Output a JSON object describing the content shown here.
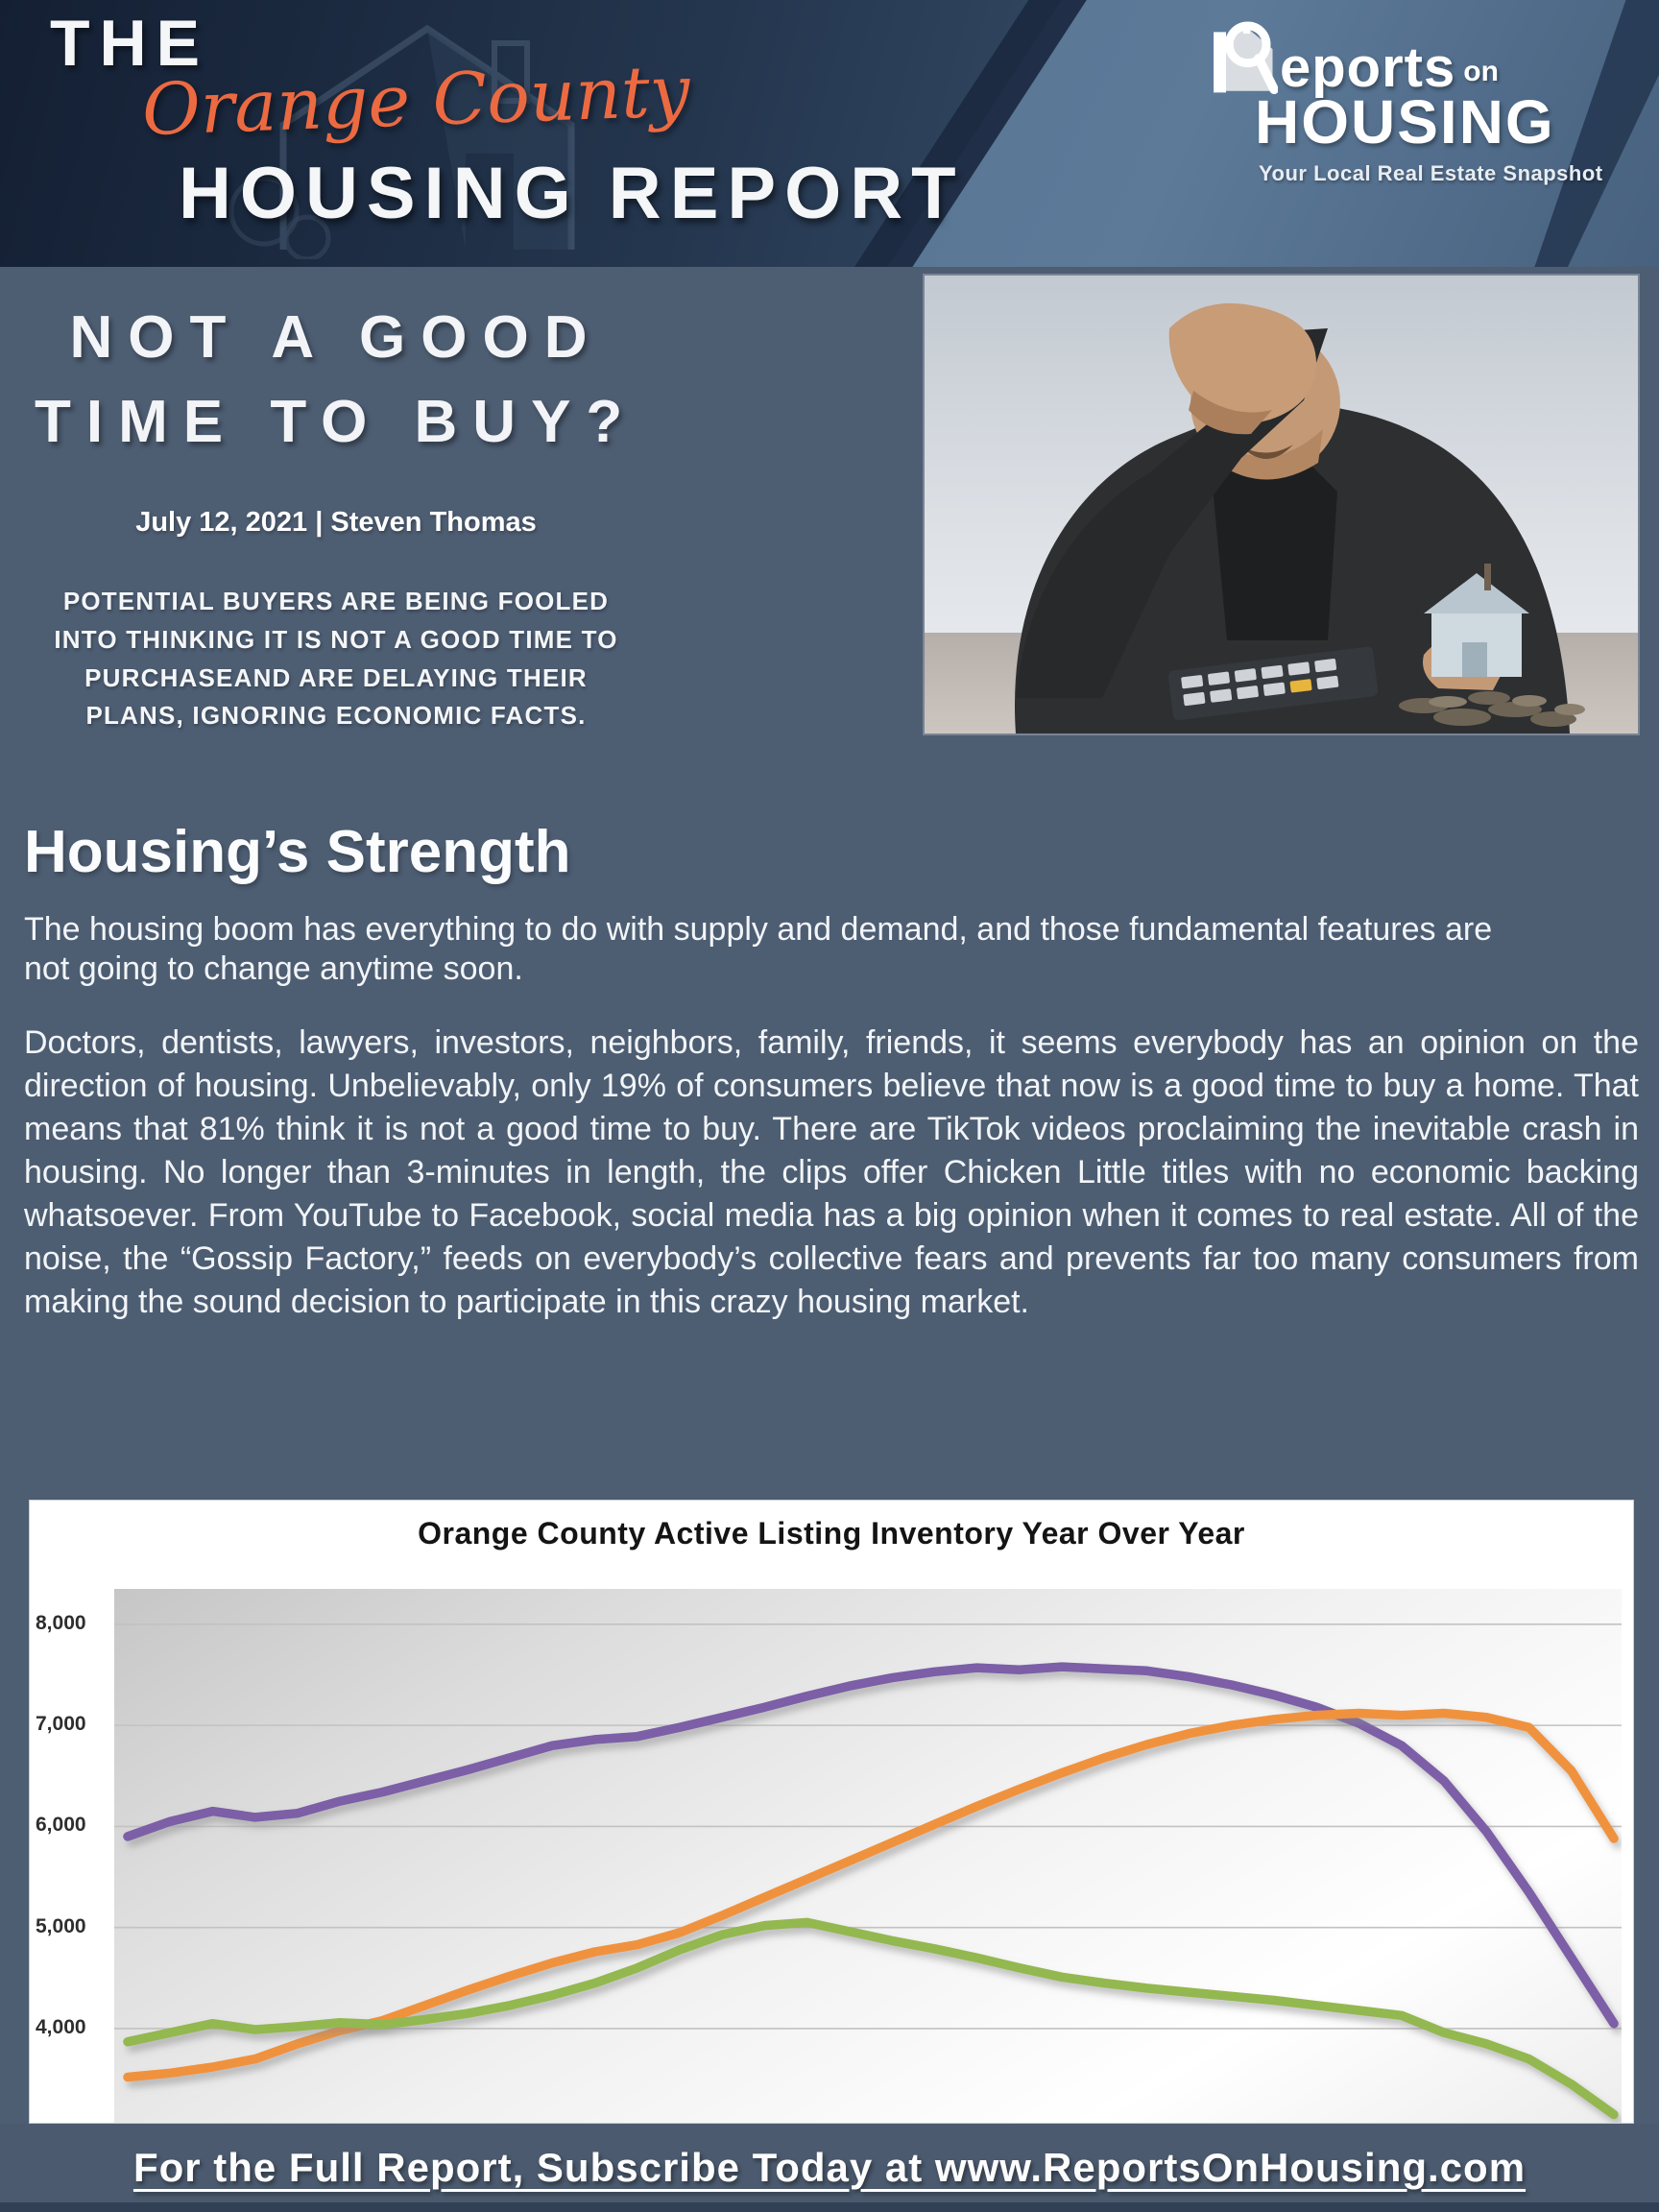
{
  "colors": {
    "page_bg": "#4d5d72",
    "banner_dark": "#1c2b41",
    "banner_light": "#587493",
    "accent_orange": "#ec6a41",
    "chart_purple": "#7b5ea7",
    "chart_orange": "#f0923e",
    "chart_green": "#93b84f"
  },
  "header": {
    "brand_the": "THE",
    "brand_script": "Orange County",
    "brand_main": "HOUSING REPORT",
    "logo": {
      "reports": "eports",
      "on": "on",
      "housing": "HOUSING",
      "tagline": "Your Local Real Estate Snapshot"
    }
  },
  "hero": {
    "headline_lines": [
      "NOT A GOOD",
      "TIME TO BUY?"
    ],
    "byline": "July 12, 2021 | Steven Thomas",
    "standfirst": "POTENTIAL BUYERS ARE BEING FOOLED INTO THINKING IT IS NOT A GOOD TIME TO PURCHASEAND ARE DELAYING THEIR PLANS, IGNORING ECONOMIC FACTS."
  },
  "article": {
    "heading": "Housing’s Strength",
    "intro": "The housing boom has everything to do with supply and demand, and those fundamental features are not going to change anytime soon.",
    "body": "Doctors, dentists, lawyers, investors, neighbors, family, friends, it seems everybody has an opinion on the direction of housing. Unbelievably, only 19% of consumers believe that now is a good time to buy a home. That means that 81% think it is not a good time to buy. There are TikTok videos proclaiming the inevitable crash in housing. No longer than 3-minutes in length, the clips offer Chicken Little titles with no economic backing whatsoever. From YouTube to Facebook, social media has a big opinion when it comes to real estate. All of the noise, the “Gossip Factory,” feeds on everybody’s collective fears and prevents far too many consumers from making the sound decision to participate in this crazy housing market."
  },
  "chart_data": {
    "type": "line",
    "title": "Orange County Active Listing Inventory Year Over Year",
    "xlabel": "",
    "ylabel": "",
    "ylim": [
      3050,
      8350
    ],
    "yticks": [
      4000,
      5000,
      6000,
      7000,
      8000
    ],
    "grid": true,
    "legend_position": "none-visible (cropped out of view)",
    "x_axis_note": "weekly points; x-axis tick labels cropped out of the visible area",
    "series": [
      {
        "name": "purple-line",
        "color": "#7b5ea7",
        "values": [
          5900,
          6050,
          6150,
          6090,
          6130,
          6250,
          6340,
          6450,
          6560,
          6680,
          6800,
          6860,
          6890,
          6980,
          7080,
          7180,
          7290,
          7390,
          7470,
          7530,
          7570,
          7550,
          7580,
          7560,
          7540,
          7480,
          7400,
          7300,
          7180,
          7020,
          6800,
          6450,
          5950,
          5350,
          4700,
          4050
        ]
      },
      {
        "name": "orange-line",
        "color": "#f0923e",
        "values": [
          3520,
          3560,
          3620,
          3700,
          3850,
          3980,
          4080,
          4230,
          4380,
          4520,
          4650,
          4760,
          4830,
          4950,
          5120,
          5300,
          5480,
          5660,
          5840,
          6020,
          6200,
          6370,
          6530,
          6680,
          6810,
          6920,
          7000,
          7060,
          7100,
          7120,
          7100,
          7120,
          7080,
          6980,
          6550,
          5880
        ]
      },
      {
        "name": "green-line",
        "color": "#93b84f",
        "values": [
          3870,
          3960,
          4050,
          3990,
          4020,
          4060,
          4040,
          4090,
          4150,
          4230,
          4330,
          4450,
          4600,
          4780,
          4930,
          5020,
          5050,
          4960,
          4870,
          4790,
          4700,
          4600,
          4510,
          4450,
          4400,
          4360,
          4320,
          4280,
          4230,
          4180,
          4130,
          3960,
          3850,
          3700,
          3450,
          3150
        ]
      }
    ]
  },
  "footer": {
    "link_text": "For the Full Report, Subscribe Today at www.ReportsOnHousing.com"
  }
}
